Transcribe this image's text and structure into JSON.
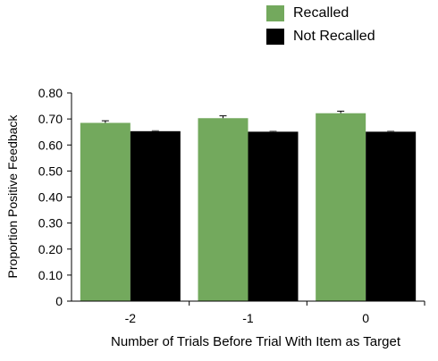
{
  "chart_data": {
    "type": "bar",
    "xlabel": "Number of Trials Before Trial With Item as Target",
    "ylabel": "Proportion Positive Feedback",
    "categories": [
      "-2",
      "-1",
      "0"
    ],
    "ylim": [
      0,
      0.8
    ],
    "yticks": [
      "0",
      "0.10",
      "0.20",
      "0.30",
      "0.40",
      "0.50",
      "0.60",
      "0.70",
      "0.80"
    ],
    "legend_position": "top-right",
    "series": [
      {
        "name": "Recalled",
        "color": "#73a95d",
        "values": [
          0.685,
          0.703,
          0.722
        ],
        "errors": [
          0.008,
          0.009,
          0.008
        ]
      },
      {
        "name": "Not Recalled",
        "color": "#000000",
        "values": [
          0.653,
          0.651,
          0.651
        ],
        "errors": [
          0.002,
          0.002,
          0.002
        ]
      }
    ]
  }
}
